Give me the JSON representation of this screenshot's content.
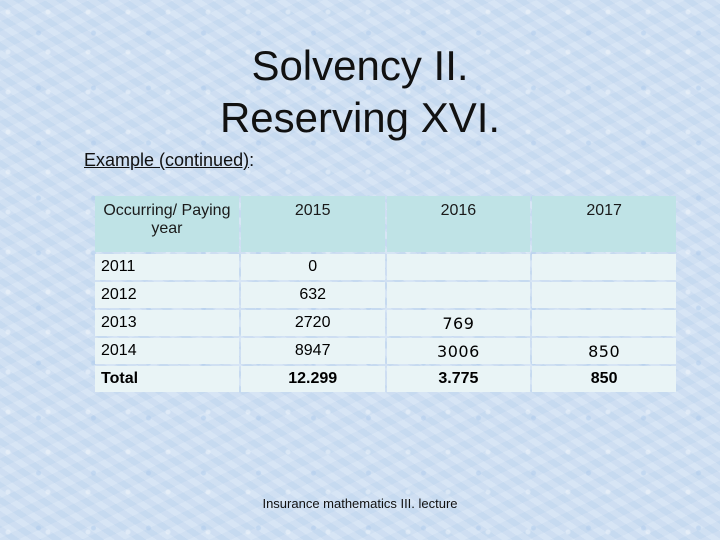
{
  "slide": {
    "title_line1": "Solvency II.",
    "title_line2": "Reserving XVI.",
    "subtitle_underlined": "Example (continued)",
    "subtitle_suffix": ":",
    "footer": "Insurance mathematics III. lecture"
  },
  "table": {
    "header": {
      "col0": "Occurring/ Paying year",
      "col1": "2015",
      "col2": "2016",
      "col3": "2017"
    },
    "rows": [
      {
        "year": "2011",
        "v2015": "0",
        "v2016": "",
        "v2017": ""
      },
      {
        "year": "2012",
        "v2015": "632",
        "v2016": "",
        "v2017": ""
      },
      {
        "year": "2013",
        "v2015": "2720",
        "v2016": "769",
        "v2017": ""
      },
      {
        "year": "2014",
        "v2015": "8947",
        "v2016": "3006",
        "v2017": "850"
      }
    ],
    "total": {
      "label": "Total",
      "v2015": "12.299",
      "v2016": "3.775",
      "v2017": "850"
    }
  }
}
